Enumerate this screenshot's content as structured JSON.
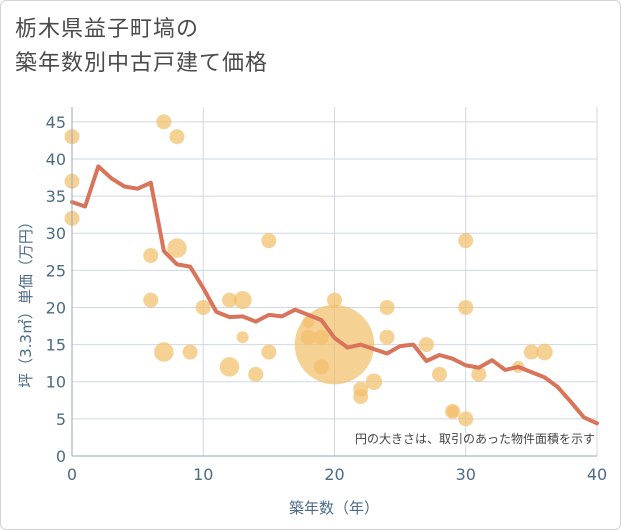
{
  "title_lines": [
    "栃木県益子町塙の",
    "築年数別中古戸建て価格"
  ],
  "chart_data": {
    "type": "scatter",
    "title": "栃木県益子町塙の築年数別中古戸建て価格",
    "xlabel": "築年数（年）",
    "ylabel": "坪（3.3㎡）単価（万円）",
    "xlim": [
      0,
      40
    ],
    "ylim": [
      0,
      47
    ],
    "xticks": [
      0,
      10,
      20,
      30,
      40
    ],
    "yticks": [
      0,
      5,
      10,
      15,
      20,
      25,
      30,
      35,
      40,
      45
    ],
    "grid": true,
    "note": "円の大きさは、取引のあった物件面積を示す",
    "colors": {
      "bubble": "#f3bf6b",
      "line": "#d9735a",
      "grid": "#cfd8e4",
      "axis_text": "#4d6b87"
    },
    "bubbles": [
      {
        "x": 0,
        "y": 43,
        "s": 1.0
      },
      {
        "x": 0,
        "y": 37,
        "s": 1.0
      },
      {
        "x": 0,
        "y": 32,
        "s": 1.0
      },
      {
        "x": 7,
        "y": 45,
        "s": 1.0
      },
      {
        "x": 8,
        "y": 43,
        "s": 1.0
      },
      {
        "x": 8,
        "y": 28,
        "s": 1.3
      },
      {
        "x": 6,
        "y": 27,
        "s": 1.0
      },
      {
        "x": 6,
        "y": 21,
        "s": 1.0
      },
      {
        "x": 7,
        "y": 14,
        "s": 1.3
      },
      {
        "x": 9,
        "y": 14,
        "s": 1.0
      },
      {
        "x": 10,
        "y": 20,
        "s": 1.0
      },
      {
        "x": 12,
        "y": 21,
        "s": 1.0
      },
      {
        "x": 13,
        "y": 21,
        "s": 1.2
      },
      {
        "x": 12,
        "y": 12,
        "s": 1.3
      },
      {
        "x": 13,
        "y": 16,
        "s": 0.8
      },
      {
        "x": 14,
        "y": 11,
        "s": 1.0
      },
      {
        "x": 15,
        "y": 29,
        "s": 1.0
      },
      {
        "x": 15,
        "y": 14,
        "s": 1.0
      },
      {
        "x": 18,
        "y": 18,
        "s": 0.8
      },
      {
        "x": 18,
        "y": 16,
        "s": 1.0
      },
      {
        "x": 19,
        "y": 16,
        "s": 1.0
      },
      {
        "x": 19,
        "y": 12,
        "s": 1.0
      },
      {
        "x": 20,
        "y": 21,
        "s": 1.0
      },
      {
        "x": 20,
        "y": 15,
        "s": 5.3
      },
      {
        "x": 22,
        "y": 9,
        "s": 1.0
      },
      {
        "x": 22,
        "y": 8,
        "s": 1.0
      },
      {
        "x": 23,
        "y": 10,
        "s": 1.1
      },
      {
        "x": 24,
        "y": 20,
        "s": 1.0
      },
      {
        "x": 24,
        "y": 16,
        "s": 1.0
      },
      {
        "x": 27,
        "y": 15,
        "s": 1.0
      },
      {
        "x": 28,
        "y": 11,
        "s": 1.0
      },
      {
        "x": 29,
        "y": 6,
        "s": 1.0
      },
      {
        "x": 29,
        "y": 6,
        "s": 0.8
      },
      {
        "x": 30,
        "y": 29,
        "s": 1.0
      },
      {
        "x": 30,
        "y": 20,
        "s": 1.0
      },
      {
        "x": 30,
        "y": 5,
        "s": 1.0
      },
      {
        "x": 31,
        "y": 11,
        "s": 1.0
      },
      {
        "x": 34,
        "y": 12,
        "s": 0.8
      },
      {
        "x": 35,
        "y": 14,
        "s": 1.0
      },
      {
        "x": 36,
        "y": 14,
        "s": 1.1
      }
    ],
    "line": {
      "x": [
        0,
        1,
        2,
        3,
        4,
        5,
        6,
        7,
        8,
        9,
        10,
        11,
        12,
        13,
        14,
        15,
        16,
        17,
        18,
        19,
        20,
        21,
        22,
        23,
        24,
        25,
        26,
        27,
        28,
        29,
        30,
        31,
        32,
        33,
        34,
        35,
        36,
        37,
        38,
        39,
        40
      ],
      "y": [
        34.2,
        33.6,
        39.0,
        37.4,
        36.3,
        36.0,
        36.8,
        27.6,
        25.8,
        25.5,
        22.6,
        19.4,
        18.7,
        18.8,
        18.1,
        19.0,
        18.8,
        19.7,
        19.0,
        18.3,
        15.9,
        14.6,
        15.0,
        14.4,
        13.8,
        14.8,
        15.0,
        12.8,
        13.6,
        13.1,
        12.2,
        11.9,
        12.9,
        11.6,
        12.0,
        11.3,
        10.6,
        9.3,
        7.3,
        5.2,
        4.4
      ]
    }
  }
}
